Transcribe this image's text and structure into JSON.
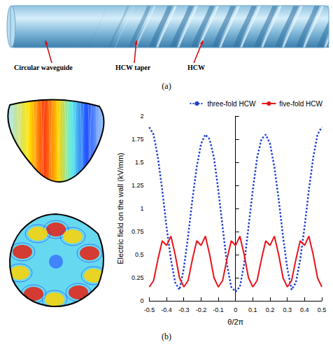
{
  "panel_a": {
    "labels": [
      "Circular waveguide",
      "HCW taper",
      "HCW"
    ],
    "caption": "(a)"
  },
  "panel_b": {
    "caption": "(b)"
  },
  "chart_data": {
    "type": "line",
    "xlabel": "θ/2π",
    "ylabel": "Electric field on the wall (kV/mm)",
    "x": [
      -0.5,
      -0.475,
      -0.45,
      -0.425,
      -0.4,
      -0.375,
      -0.35,
      -0.325,
      -0.3,
      -0.275,
      -0.25,
      -0.225,
      -0.2,
      -0.175,
      -0.15,
      -0.125,
      -0.1,
      -0.075,
      -0.05,
      -0.025,
      0,
      0.025,
      0.05,
      0.075,
      0.1,
      0.125,
      0.15,
      0.175,
      0.2,
      0.225,
      0.25,
      0.275,
      0.3,
      0.325,
      0.35,
      0.375,
      0.4,
      0.425,
      0.45,
      0.475,
      0.5
    ],
    "series": [
      {
        "name": "three-fold HCW",
        "color": "#1f3fd0",
        "line_style": "dotted",
        "values": [
          1.88,
          1.8,
          1.55,
          1.2,
          0.8,
          0.45,
          0.2,
          0.12,
          0.35,
          0.7,
          1.1,
          1.45,
          1.7,
          1.8,
          1.75,
          1.55,
          1.2,
          0.8,
          0.4,
          0.15,
          0.1,
          0.15,
          0.4,
          0.8,
          1.2,
          1.55,
          1.75,
          1.8,
          1.7,
          1.45,
          1.1,
          0.7,
          0.35,
          0.12,
          0.2,
          0.45,
          0.8,
          1.2,
          1.55,
          1.8,
          1.88
        ]
      },
      {
        "name": "five-fold HCW",
        "color": "#e8141b",
        "line_style": "solid",
        "values": [
          0.15,
          0.22,
          0.45,
          0.65,
          0.6,
          0.7,
          0.5,
          0.25,
          0.15,
          0.22,
          0.45,
          0.65,
          0.6,
          0.7,
          0.5,
          0.25,
          0.15,
          0.22,
          0.45,
          0.65,
          0.6,
          0.7,
          0.5,
          0.25,
          0.15,
          0.22,
          0.45,
          0.65,
          0.6,
          0.7,
          0.5,
          0.25,
          0.15,
          0.22,
          0.45,
          0.65,
          0.6,
          0.7,
          0.5,
          0.25,
          0.15
        ]
      }
    ],
    "xlim": [
      -0.5,
      0.5
    ],
    "ylim": [
      0,
      2
    ],
    "xticks": [
      -0.5,
      -0.4,
      -0.3,
      -0.2,
      -0.1,
      0,
      0.1,
      0.2,
      0.3,
      0.4,
      0.5
    ],
    "yticks": [
      0,
      0.25,
      0.5,
      0.75,
      1,
      1.25,
      1.5,
      1.75,
      2
    ],
    "grid": false,
    "legend": "top"
  }
}
